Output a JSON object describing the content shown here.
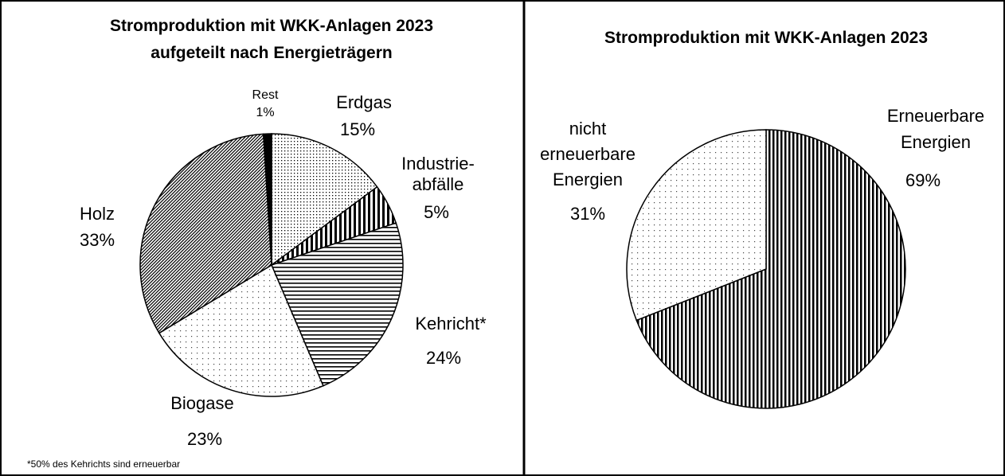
{
  "chart_data": [
    {
      "type": "pie",
      "title": "Stromproduktion mit WKK-Anlagen 2023\naufgeteilt nach Energieträgern",
      "categories": [
        "Erdgas",
        "Industrie-\nabfälle",
        "Kehricht*",
        "Biogase",
        "Holz",
        "Rest"
      ],
      "values": [
        15,
        5,
        24,
        23,
        33,
        1
      ],
      "value_labels": [
        "15%",
        "5%",
        "24%",
        "23%",
        "33%",
        "1%"
      ],
      "patterns": [
        "fine-dots",
        "vertical-stripes",
        "horizontal-stripes",
        "sparse-dots",
        "diagonal-hatch",
        "solid"
      ],
      "footnote": "*50% des Kehrichts  sind erneuerbar"
    },
    {
      "type": "pie",
      "title": "Stromproduktion mit WKK-Anlagen 2023",
      "categories": [
        "Erneuerbare\nEnergien",
        "nicht\nerneuerbare\nEnergien"
      ],
      "values": [
        69,
        31
      ],
      "value_labels": [
        "69%",
        "31%"
      ],
      "patterns": [
        "vertical-stripes-bold",
        "sparse-dots"
      ]
    }
  ]
}
